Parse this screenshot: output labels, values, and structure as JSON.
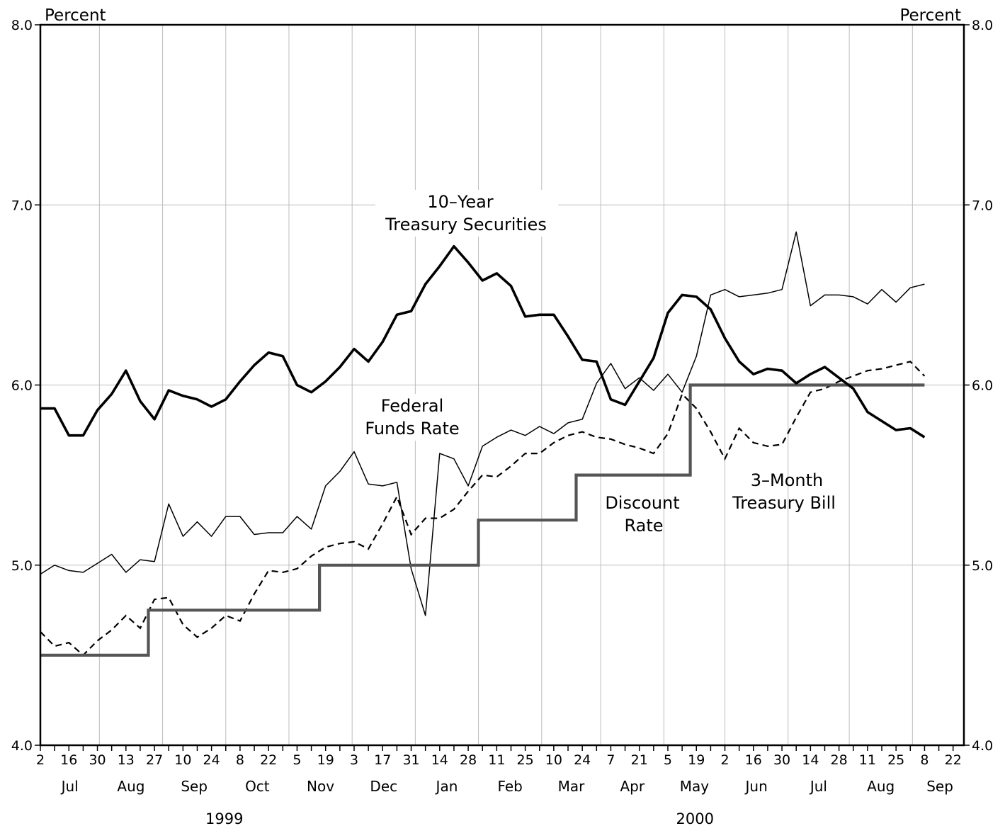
{
  "chart_data": {
    "type": "line",
    "y_axis": {
      "ylim": [
        4.0,
        8.0
      ],
      "ticks": [
        4.0,
        5.0,
        6.0,
        7.0,
        8.0
      ],
      "tick_labels": [
        "4.0",
        "5.0",
        "6.0",
        "7.0",
        "8.0"
      ],
      "left_unit": "Percent",
      "right_unit": "Percent"
    },
    "x_axis": {
      "day_labels": [
        "2",
        "16",
        "30",
        "13",
        "27",
        "10",
        "24",
        "8",
        "22",
        "5",
        "19",
        "3",
        "17",
        "31",
        "14",
        "28",
        "11",
        "25",
        "10",
        "24",
        "7",
        "21",
        "5",
        "19",
        "2",
        "16",
        "30",
        "14",
        "28",
        "11",
        "25",
        "8",
        "22"
      ],
      "months": [
        "Jul",
        "Aug",
        "Sep",
        "Oct",
        "Nov",
        "Dec",
        "Jan",
        "Feb",
        "Mar",
        "Apr",
        "May",
        "Jun",
        "Jul",
        "Aug",
        "Sep"
      ],
      "years": [
        "1999",
        "2000"
      ]
    },
    "series": [
      {
        "name": "10-Year Treasury Securities",
        "style": "thick",
        "values": [
          5.87,
          5.87,
          5.72,
          5.72,
          5.86,
          5.95,
          6.08,
          5.91,
          5.81,
          5.97,
          5.94,
          5.92,
          5.88,
          5.92,
          6.02,
          6.11,
          6.18,
          6.16,
          6.0,
          5.96,
          6.02,
          6.1,
          6.2,
          6.13,
          6.24,
          6.39,
          6.41,
          6.56,
          6.66,
          6.77,
          6.68,
          6.58,
          6.62,
          6.55,
          6.38,
          6.39,
          6.39,
          6.27,
          6.14,
          6.13,
          5.92,
          5.89,
          6.02,
          6.15,
          6.4,
          6.5,
          6.49,
          6.42,
          6.26,
          6.13,
          6.06,
          6.09,
          6.08,
          6.01,
          6.06,
          6.1,
          6.04,
          5.98,
          5.85,
          5.8,
          5.75,
          5.76,
          5.71
        ]
      },
      {
        "name": "Federal Funds Rate",
        "style": "thin",
        "values": [
          4.95,
          5.0,
          4.97,
          4.96,
          5.01,
          5.06,
          4.96,
          5.03,
          5.02,
          5.34,
          5.16,
          5.24,
          5.16,
          5.27,
          5.27,
          5.17,
          5.18,
          5.18,
          5.27,
          5.2,
          5.44,
          5.52,
          5.63,
          5.45,
          5.44,
          5.46,
          4.98,
          4.72,
          5.62,
          5.59,
          5.44,
          5.66,
          5.71,
          5.75,
          5.72,
          5.77,
          5.73,
          5.79,
          5.81,
          6.01,
          6.12,
          5.98,
          6.04,
          5.97,
          6.06,
          5.96,
          6.16,
          6.5,
          6.53,
          6.49,
          6.5,
          6.51,
          6.53,
          6.85,
          6.44,
          6.5,
          6.5,
          6.49,
          6.45,
          6.53,
          6.46,
          6.54,
          6.56
        ]
      },
      {
        "name": "3-Month Treasury Bill",
        "style": "dashed",
        "values": [
          4.63,
          4.55,
          4.57,
          4.5,
          4.58,
          4.64,
          4.72,
          4.65,
          4.81,
          4.82,
          4.67,
          4.6,
          4.65,
          4.72,
          4.69,
          4.84,
          4.97,
          4.96,
          4.98,
          5.05,
          5.1,
          5.12,
          5.13,
          5.09,
          5.23,
          5.38,
          5.17,
          5.26,
          5.26,
          5.31,
          5.41,
          5.5,
          5.49,
          5.55,
          5.62,
          5.62,
          5.68,
          5.72,
          5.74,
          5.71,
          5.7,
          5.67,
          5.65,
          5.62,
          5.73,
          5.95,
          5.87,
          5.74,
          5.59,
          5.76,
          5.68,
          5.66,
          5.67,
          5.82,
          5.96,
          5.98,
          6.02,
          6.05,
          6.08,
          6.09,
          6.11,
          6.13,
          6.05
        ]
      },
      {
        "name": "Discount Rate",
        "style": "step",
        "steps": [
          {
            "from": "1999-07-02",
            "rate": 4.5
          },
          {
            "from": "1999-08-24",
            "rate": 4.75
          },
          {
            "from": "1999-11-16",
            "rate": 5.0
          },
          {
            "from": "2000-02-02",
            "rate": 5.25
          },
          {
            "from": "2000-03-21",
            "rate": 5.5
          },
          {
            "from": "2000-05-16",
            "rate": 6.0
          }
        ],
        "end": "2000-09-08"
      }
    ],
    "annotations": [
      {
        "lines": [
          "10–Year",
          "Treasury Securities"
        ]
      },
      {
        "lines": [
          "Federal",
          "Funds Rate"
        ]
      },
      {
        "lines": [
          "Discount",
          "Rate"
        ]
      },
      {
        "lines": [
          "3–Month",
          "Treasury Bill"
        ]
      }
    ]
  }
}
